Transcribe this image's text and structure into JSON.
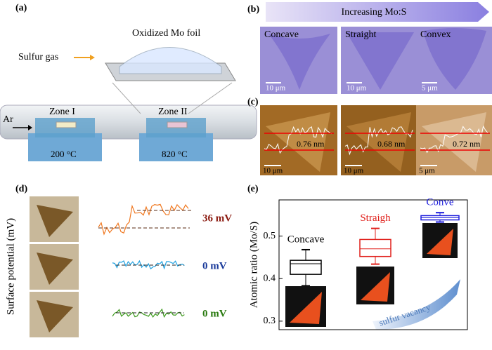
{
  "panels": {
    "a": {
      "label": "(a)",
      "foil": "Oxidized Mo foil",
      "gas": "Sulfur gas",
      "carrier": "Ar",
      "zone1": "Zone I",
      "zone2": "Zone II",
      "temp1": "200 °C",
      "temp2": "820 °C"
    },
    "b": {
      "label": "(b)",
      "arrow": "Increasing Mo:S",
      "images": [
        {
          "name": "Concave",
          "scale": "10 μm"
        },
        {
          "name": "Straight",
          "scale": "10 μm"
        },
        {
          "name": "Convex",
          "scale": "5 μm"
        }
      ]
    },
    "c": {
      "label": "(c)",
      "images": [
        {
          "height": "0.76 nm",
          "scale": "10 μm"
        },
        {
          "height": "0.68 nm",
          "scale": "10 μm"
        },
        {
          "height": "0.72 nm",
          "scale": "5 μm"
        }
      ]
    },
    "d": {
      "label": "(d)",
      "ylabel": "Surface potential (mV)",
      "traces": [
        "36 mV",
        "0 mV",
        "0 mV"
      ]
    },
    "e": {
      "label": "(e)",
      "annotation": "sulfur vacancy"
    }
  },
  "chart_data": {
    "type": "box",
    "ylabel": "Atomic ratio (Mo/S)",
    "ylim": [
      0.28,
      0.585
    ],
    "yticks": [
      0.3,
      0.4,
      0.5
    ],
    "series": [
      {
        "name": "Concave",
        "color": "#000000",
        "min": 0.383,
        "q1": 0.41,
        "median": 0.435,
        "q3": 0.443,
        "max": 0.468
      },
      {
        "name": "Straigh",
        "color": "#e0201b",
        "min": 0.434,
        "q1": 0.452,
        "median": 0.47,
        "q3": 0.492,
        "max": 0.518
      },
      {
        "name": "Conve",
        "color": "#1a1adc",
        "min": 0.533,
        "q1": 0.538,
        "median": 0.543,
        "q3": 0.548,
        "max": 0.555
      }
    ]
  }
}
